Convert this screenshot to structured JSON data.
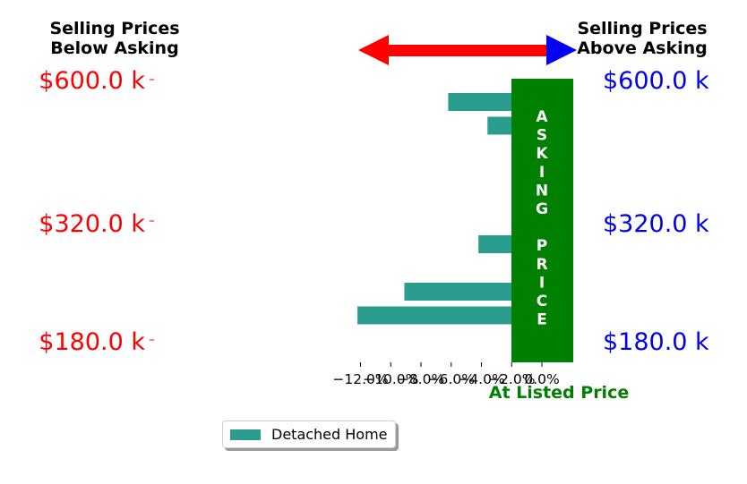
{
  "header": {
    "left_line1": "Selling Prices",
    "left_line2": "Below Asking",
    "right_line1": "Selling Prices",
    "right_line2": "Above Asking"
  },
  "price_labels": [
    "$600.0 k",
    "$320.0 k",
    "$180.0 k"
  ],
  "asking_band": {
    "letters": [
      "A",
      "S",
      "K",
      "I",
      "N",
      "G",
      "",
      "P",
      "R",
      "I",
      "C",
      "E"
    ],
    "caption": "At Listed Price"
  },
  "colors": {
    "bar": "#2a9d8f",
    "band": "#008000",
    "below": "#ff0000",
    "above": "#0000ee",
    "caption": "#008000"
  },
  "chart_data": {
    "type": "bar",
    "orientation": "horizontal",
    "series": [
      {
        "name": "Detached Home",
        "values": [
          -6.2,
          -3.6,
          -1.3,
          -1.6,
          1.2,
          1.2,
          -4.2,
          1.2,
          -9.1,
          -12.2
        ]
      }
    ],
    "xlim": [
      -13.0,
      1.2
    ],
    "xticks": [
      -12,
      -10,
      -8,
      -6,
      -4,
      -2,
      0
    ],
    "xtick_labels": [
      "−12.0%",
      "−10.0%",
      "−8.0%",
      "−6.0%",
      "−4.0%",
      "−2.0%",
      "0.0%"
    ],
    "legend_position": "bottom-left"
  }
}
